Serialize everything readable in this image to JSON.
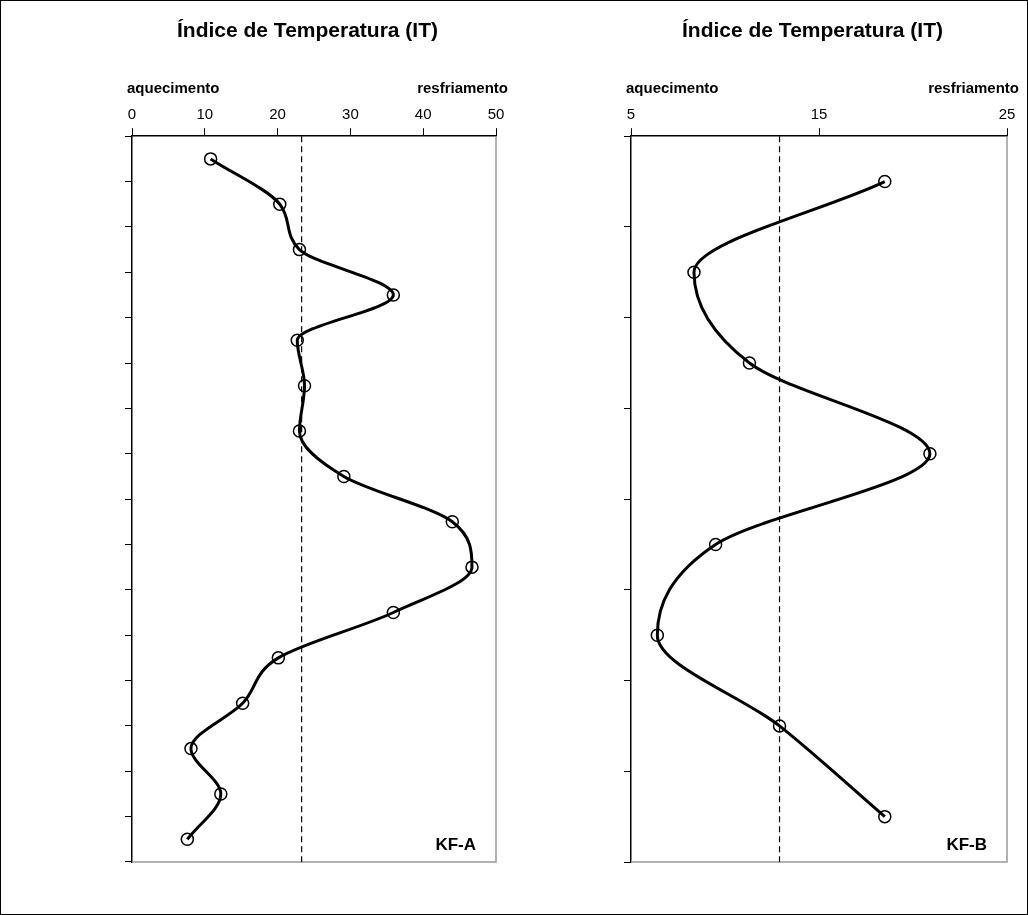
{
  "chart_data": [
    {
      "type": "line",
      "title": "Índice de Temperatura (IT)",
      "orientation": "horizontal",
      "categories": [
        null,
        null,
        null,
        null,
        null,
        null,
        null,
        null,
        null,
        null,
        null,
        null,
        null,
        null,
        null,
        null
      ],
      "values": [
        10.8,
        20.3,
        23.0,
        35.9,
        22.7,
        23.7,
        23.0,
        29.1,
        44.0,
        46.7,
        35.9,
        20.1,
        15.2,
        8.1,
        12.2,
        7.6
      ],
      "color": "#000000",
      "marker": "circle",
      "xlim": [
        0,
        50
      ],
      "xticks": [
        0,
        10,
        20,
        30,
        40,
        50
      ],
      "grid": false,
      "legend": false,
      "ref_lines": [
        {
          "axis": "x",
          "value": 23.3,
          "color": "#000000",
          "line_style": "dashed"
        }
      ],
      "annotations": [
        "aquecimento",
        "resfriamento",
        "KF-A"
      ]
    },
    {
      "type": "line",
      "title": "Índice de Temperatura (IT)",
      "orientation": "horizontal",
      "categories": [
        null,
        null,
        null,
        null,
        null,
        null,
        null,
        null
      ],
      "values": [
        18.5,
        8.35,
        11.3,
        20.9,
        9.5,
        6.4,
        12.9,
        18.5
      ],
      "color": "#000000",
      "marker": "circle",
      "xlim": [
        5,
        25
      ],
      "xticks": [
        5,
        15,
        25
      ],
      "grid": false,
      "legend": false,
      "ref_lines": [
        {
          "axis": "x",
          "value": 12.9,
          "color": "#000000",
          "line_style": "dashed"
        }
      ],
      "annotations": [
        "aquecimento",
        "resfriamento",
        "KF-B"
      ]
    }
  ]
}
